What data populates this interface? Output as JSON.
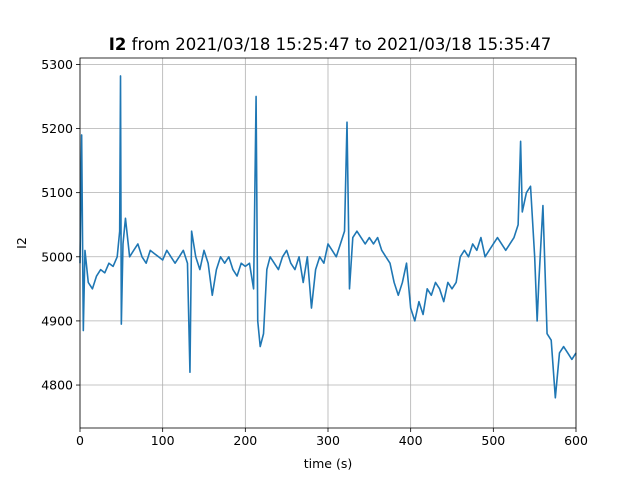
{
  "chart_data": {
    "type": "line",
    "title_bold": "I2",
    "title_rest": " from 2021/03/18 15:25:47 to 2021/03/18 15:35:47",
    "xlabel": "time (s)",
    "ylabel": "I2",
    "xlim": [
      0,
      600
    ],
    "ylim": [
      4733,
      5310
    ],
    "x_ticks": [
      0,
      100,
      200,
      300,
      400,
      500,
      600
    ],
    "y_ticks": [
      4800,
      4900,
      5000,
      5100,
      5200,
      5300
    ],
    "grid": true,
    "line_color": "#1f77b4",
    "series": [
      {
        "x": [
          0,
          2,
          4,
          6,
          10,
          15,
          20,
          25,
          30,
          35,
          40,
          45,
          48,
          49,
          50,
          52,
          55,
          60,
          65,
          70,
          75,
          80,
          85,
          90,
          95,
          100,
          105,
          110,
          115,
          120,
          125,
          130,
          133,
          135,
          140,
          145,
          150,
          155,
          160,
          165,
          170,
          175,
          180,
          185,
          190,
          195,
          200,
          205,
          210,
          213,
          215,
          218,
          222,
          226,
          230,
          235,
          240,
          245,
          250,
          255,
          260,
          265,
          270,
          275,
          280,
          285,
          290,
          295,
          300,
          305,
          310,
          315,
          320,
          323,
          326,
          330,
          335,
          340,
          345,
          350,
          355,
          360,
          365,
          370,
          375,
          380,
          385,
          390,
          395,
          400,
          405,
          410,
          415,
          420,
          425,
          430,
          435,
          440,
          445,
          450,
          455,
          460,
          465,
          470,
          475,
          480,
          485,
          490,
          495,
          500,
          505,
          510,
          515,
          520,
          525,
          530,
          533,
          535,
          540,
          545,
          550,
          553,
          555,
          560,
          565,
          570,
          575,
          580,
          585,
          590,
          595,
          600
        ],
        "y": [
          4990,
          5190,
          4885,
          5010,
          4960,
          4950,
          4970,
          4980,
          4975,
          4990,
          4985,
          5000,
          5040,
          5282,
          4895,
          5020,
          5060,
          5000,
          5010,
          5020,
          5000,
          4990,
          5010,
          5005,
          5000,
          4995,
          5010,
          5000,
          4990,
          5000,
          5010,
          4990,
          4820,
          5040,
          5000,
          4980,
          5010,
          4990,
          4940,
          4980,
          5000,
          4990,
          5000,
          4980,
          4970,
          4990,
          4985,
          4990,
          4950,
          5250,
          4900,
          4860,
          4880,
          4980,
          5000,
          4990,
          4980,
          5000,
          5010,
          4990,
          4980,
          5000,
          4960,
          5000,
          4920,
          4980,
          5000,
          4990,
          5020,
          5010,
          5000,
          5020,
          5040,
          5210,
          4950,
          5030,
          5040,
          5030,
          5020,
          5030,
          5020,
          5030,
          5010,
          5000,
          4990,
          4960,
          4940,
          4960,
          4990,
          4920,
          4900,
          4930,
          4910,
          4950,
          4940,
          4960,
          4950,
          4930,
          4960,
          4950,
          4960,
          5000,
          5010,
          5000,
          5020,
          5010,
          5030,
          5000,
          5010,
          5020,
          5030,
          5020,
          5010,
          5020,
          5030,
          5050,
          5180,
          5070,
          5100,
          5110,
          5000,
          4900,
          4960,
          5080,
          4880,
          4870,
          4780,
          4850,
          4860,
          4850,
          4840,
          4850
        ]
      }
    ]
  }
}
